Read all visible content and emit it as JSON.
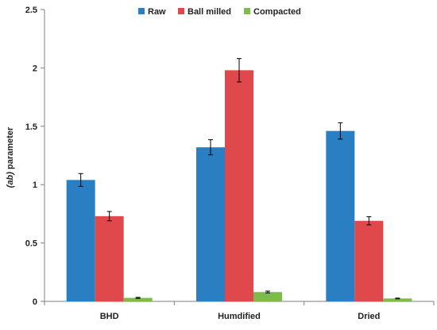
{
  "chart_data": {
    "type": "bar",
    "categories": [
      "BHD",
      "Humdified",
      "Dried"
    ],
    "series": [
      {
        "name": "Raw",
        "color": "#2a7fc3",
        "values": [
          1.04,
          1.32,
          1.46
        ],
        "errors": [
          0.055,
          0.065,
          0.07
        ]
      },
      {
        "name": "Ball milled",
        "color": "#e0494b",
        "values": [
          0.73,
          1.98,
          0.69
        ],
        "errors": [
          0.04,
          0.1,
          0.035
        ]
      },
      {
        "name": "Compacted",
        "color": "#7dbb4a",
        "values": [
          0.03,
          0.08,
          0.025
        ],
        "errors": [
          0.004,
          0.008,
          0.003
        ]
      }
    ],
    "ylabel": {
      "italic": "(ab)",
      "rest": " parameter"
    },
    "xlabel": "",
    "title": "",
    "ylim": [
      0,
      2.5
    ],
    "yticks": [
      0,
      0.5,
      1,
      1.5,
      2,
      2.5
    ],
    "ytick_labels": [
      "0",
      "0.5",
      "1",
      "1.5",
      "2",
      "2.5"
    ],
    "legend_position": "top-center",
    "grid": false
  }
}
